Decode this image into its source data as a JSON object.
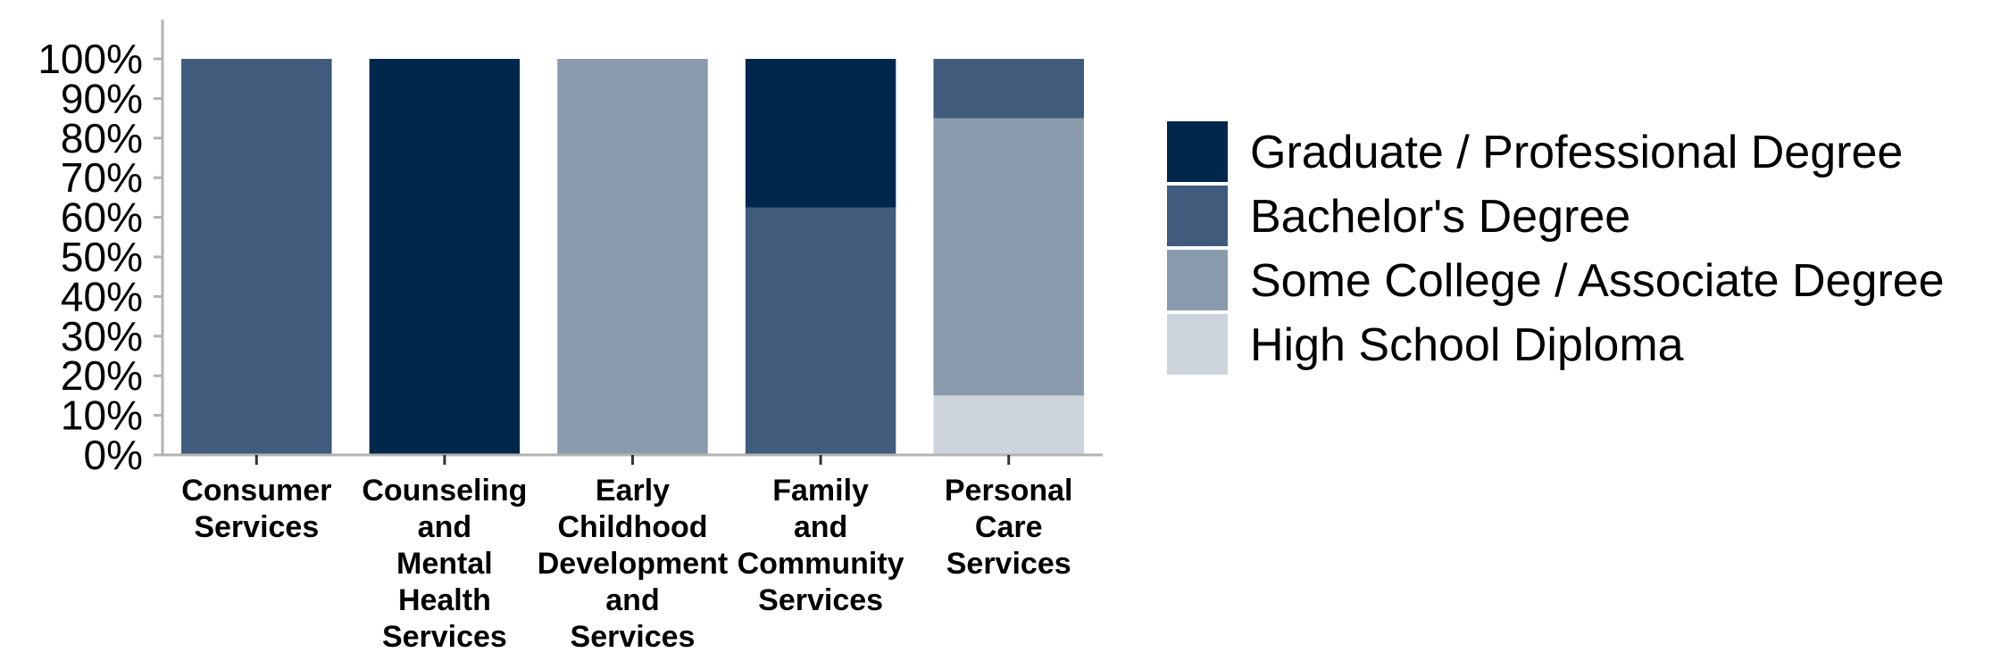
{
  "colors": {
    "graduate": "#01274d",
    "bachelor": "#405b7b",
    "some_college": "#8a9bae",
    "high_school": "#cdd4dc",
    "axis": "#b3b3b3"
  },
  "chart_data": {
    "type": "bar",
    "stacked": true,
    "title": "",
    "xlabel": "",
    "ylabel": "",
    "ylim": [
      0,
      100
    ],
    "yticks": [
      "0%",
      "10%",
      "20%",
      "30%",
      "40%",
      "50%",
      "60%",
      "70%",
      "80%",
      "90%",
      "100%"
    ],
    "categories": [
      [
        "Consumer",
        "Services"
      ],
      [
        "Counseling",
        "and",
        "Mental",
        "Health",
        "Services"
      ],
      [
        "Early",
        "Childhood",
        "Development",
        "and",
        "Services"
      ],
      [
        "Family",
        "and",
        "Community",
        "Services"
      ],
      [
        "Personal",
        "Care",
        "Services"
      ]
    ],
    "series": [
      {
        "name": "High School Diploma",
        "color_key": "high_school",
        "values": [
          0,
          0,
          0,
          0,
          15
        ]
      },
      {
        "name": "Some College / Associate Degree",
        "color_key": "some_college",
        "values": [
          0,
          0,
          100,
          0,
          70
        ]
      },
      {
        "name": "Bachelor's Degree",
        "color_key": "bachelor",
        "values": [
          100,
          0,
          0,
          62.5,
          15
        ]
      },
      {
        "name": "Graduate / Professional Degree",
        "color_key": "graduate",
        "values": [
          0,
          100,
          0,
          37.5,
          0
        ]
      }
    ],
    "legend_order": [
      "Graduate / Professional Degree",
      "Bachelor's Degree",
      "Some College / Associate Degree",
      "High School Diploma"
    ],
    "legend_position": "right",
    "grid": false
  }
}
